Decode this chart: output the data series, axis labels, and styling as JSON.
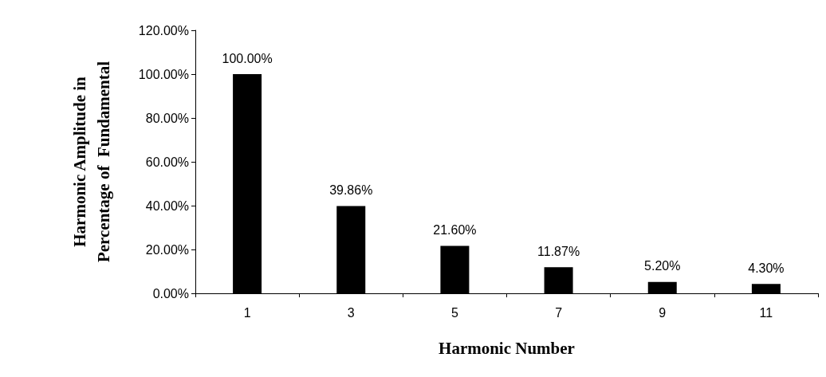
{
  "chart_data": {
    "type": "bar",
    "xlabel": "Harmonic Number",
    "ylabel": "Harmonic Amplitude in\nPercentage of  Fundamental",
    "categories": [
      "1",
      "3",
      "5",
      "7",
      "9",
      "11"
    ],
    "values": [
      100,
      39.86,
      21.6,
      11.87,
      5.2,
      4.3
    ],
    "value_labels": [
      "100.00%",
      "39.86%",
      "21.60%",
      "11.87%",
      "5.20%",
      "4.30%"
    ],
    "color": "#000000",
    "ylim": [
      0,
      120
    ],
    "yticks": [
      {
        "value": 0,
        "label": "0.00%"
      },
      {
        "value": 20,
        "label": "20.00%"
      },
      {
        "value": 40,
        "label": "40.00%"
      },
      {
        "value": 60,
        "label": "60.00%"
      },
      {
        "value": 80,
        "label": "80.00%"
      },
      {
        "value": 100,
        "label": "100.00%"
      },
      {
        "value": 120,
        "label": "120.00%"
      }
    ],
    "tick_labels": "xy"
  }
}
